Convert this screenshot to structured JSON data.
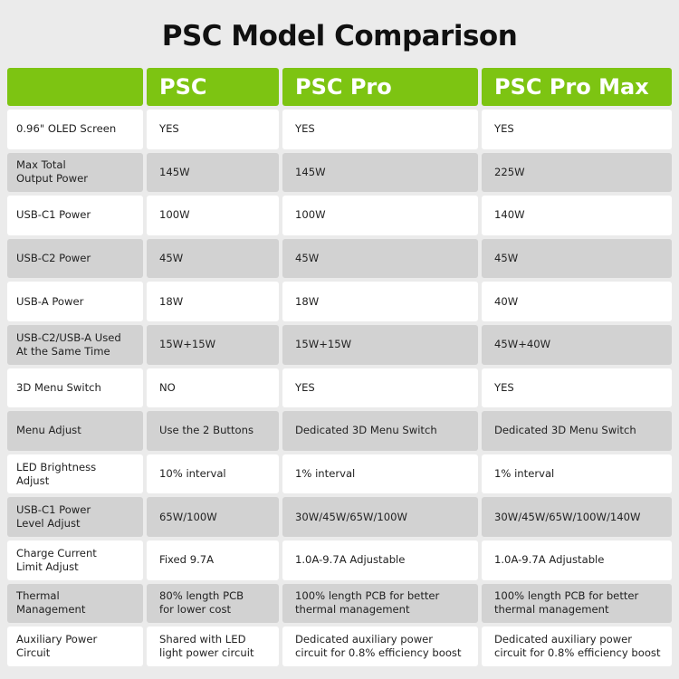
{
  "title": "PSC Model Comparison",
  "colors": {
    "accent": "#7dc412",
    "row_alt": "#d2d2d2",
    "background": "#ebebeb"
  },
  "columns": [
    "",
    "PSC",
    "PSC Pro",
    "PSC Pro Max"
  ],
  "rows": [
    [
      "0.96\" OLED Screen",
      "YES",
      "YES",
      "YES"
    ],
    [
      "Max Total\nOutput Power",
      "145W",
      "145W",
      "225W"
    ],
    [
      "USB-C1 Power",
      "100W",
      "100W",
      "140W"
    ],
    [
      "USB-C2 Power",
      "45W",
      "45W",
      "45W"
    ],
    [
      "USB-A Power",
      "18W",
      "18W",
      "40W"
    ],
    [
      "USB-C2/USB-A Used\nAt the Same Time",
      "15W+15W",
      "15W+15W",
      "45W+40W"
    ],
    [
      "3D Menu Switch",
      "NO",
      "YES",
      "YES"
    ],
    [
      "Menu Adjust",
      "Use the 2 Buttons",
      "Dedicated 3D Menu Switch",
      "Dedicated 3D Menu Switch"
    ],
    [
      "LED Brightness\nAdjust",
      "10% interval",
      "1% interval",
      "1% interval"
    ],
    [
      "USB-C1 Power\nLevel Adjust",
      "65W/100W",
      "30W/45W/65W/100W",
      "30W/45W/65W/100W/140W"
    ],
    [
      "Charge Current\nLimit Adjust",
      "Fixed 9.7A",
      "1.0A-9.7A Adjustable",
      "1.0A-9.7A Adjustable"
    ],
    [
      "Thermal\nManagement",
      "80% length PCB\nfor lower cost",
      "100% length PCB for better\nthermal management",
      "100% length PCB for better\nthermal management"
    ],
    [
      "Auxiliary Power\nCircuit",
      "Shared with LED\nlight power circuit",
      "Dedicated auxiliary power\ncircuit for 0.8% efficiency boost",
      "Dedicated auxiliary power\ncircuit for 0.8% efficiency boost"
    ]
  ]
}
